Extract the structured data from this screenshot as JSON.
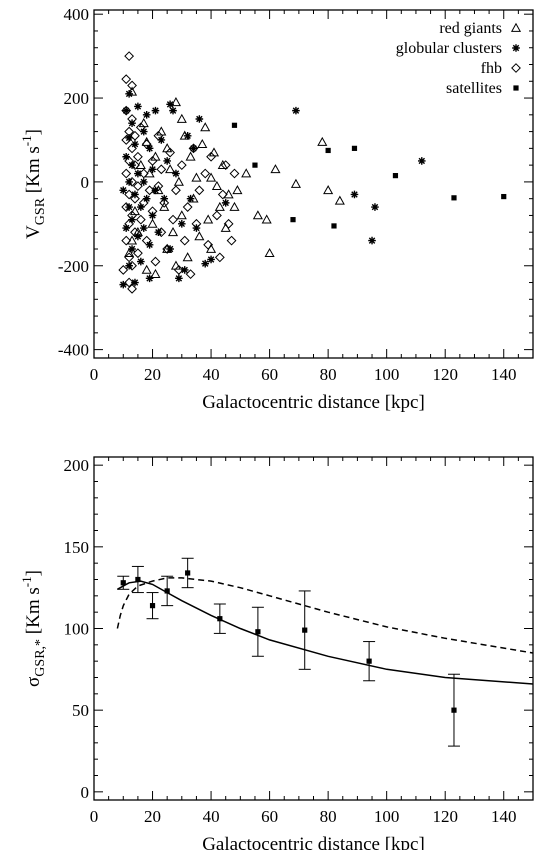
{
  "chart_data": [
    {
      "type": "scatter",
      "xlabel": "Galactocentric distance [kpc]",
      "ylabel_main": "V",
      "ylabel_sub": "GSR",
      "ylabel_unit_pre": " [Km s",
      "ylabel_unit_sup": "-1",
      "ylabel_unit_post": "]",
      "xlim": [
        0,
        150
      ],
      "ylim": [
        -420,
        410
      ],
      "xticks": [
        0,
        20,
        40,
        60,
        80,
        100,
        120,
        140
      ],
      "yticks": [
        -400,
        -200,
        0,
        200,
        400
      ],
      "grid": false,
      "legend_position": "top-right",
      "series": [
        {
          "name": "red giants",
          "marker": "triangle",
          "points": [
            [
              12,
              -170
            ],
            [
              13,
              215
            ],
            [
              13,
              -140
            ],
            [
              14,
              -70
            ],
            [
              15,
              -120
            ],
            [
              16,
              40
            ],
            [
              17,
              140
            ],
            [
              18,
              -210
            ],
            [
              18,
              95
            ],
            [
              19,
              20
            ],
            [
              20,
              -100
            ],
            [
              21,
              60
            ],
            [
              21,
              -220
            ],
            [
              22,
              -20
            ],
            [
              23,
              120
            ],
            [
              24,
              -60
            ],
            [
              25,
              80
            ],
            [
              25,
              -160
            ],
            [
              26,
              30
            ],
            [
              27,
              -120
            ],
            [
              28,
              190
            ],
            [
              28,
              -200
            ],
            [
              29,
              0
            ],
            [
              30,
              150
            ],
            [
              30,
              -80
            ],
            [
              31,
              110
            ],
            [
              32,
              -180
            ],
            [
              33,
              60
            ],
            [
              34,
              -40
            ],
            [
              35,
              10
            ],
            [
              36,
              -130
            ],
            [
              37,
              90
            ],
            [
              38,
              130
            ],
            [
              39,
              -90
            ],
            [
              40,
              10
            ],
            [
              40,
              -160
            ],
            [
              41,
              70
            ],
            [
              42,
              -10
            ],
            [
              43,
              -60
            ],
            [
              44,
              40
            ],
            [
              45,
              -110
            ],
            [
              46,
              -30
            ],
            [
              48,
              -60
            ],
            [
              49,
              -20
            ],
            [
              52,
              20
            ],
            [
              56,
              -80
            ],
            [
              59,
              -90
            ],
            [
              60,
              -170
            ],
            [
              62,
              30
            ],
            [
              69,
              -5
            ],
            [
              78,
              95
            ],
            [
              80,
              -20
            ],
            [
              84,
              -45
            ]
          ]
        },
        {
          "name": "globular clusters",
          "marker": "asterisk",
          "points": [
            [
              10,
              -245
            ],
            [
              10,
              -20
            ],
            [
              11,
              60
            ],
            [
              11,
              -110
            ],
            [
              11,
              170
            ],
            [
              12,
              -60
            ],
            [
              12,
              0
            ],
            [
              12,
              105
            ],
            [
              12,
              -200
            ],
            [
              12,
              210
            ],
            [
              13,
              -90
            ],
            [
              13,
              40
            ],
            [
              13,
              -160
            ],
            [
              13,
              140
            ],
            [
              14,
              -240
            ],
            [
              14,
              -30
            ],
            [
              14,
              90
            ],
            [
              15,
              -130
            ],
            [
              15,
              20
            ],
            [
              15,
              180
            ],
            [
              16,
              -60
            ],
            [
              16,
              -190
            ],
            [
              17,
              120
            ],
            [
              17,
              -110
            ],
            [
              17,
              0
            ],
            [
              18,
              160
            ],
            [
              18,
              -40
            ],
            [
              19,
              80
            ],
            [
              19,
              -150
            ],
            [
              19,
              -230
            ],
            [
              20,
              -80
            ],
            [
              20,
              30
            ],
            [
              21,
              170
            ],
            [
              21,
              -20
            ],
            [
              22,
              -120
            ],
            [
              23,
              100
            ],
            [
              24,
              -40
            ],
            [
              25,
              50
            ],
            [
              26,
              -160
            ],
            [
              26,
              185
            ],
            [
              27,
              170
            ],
            [
              28,
              20
            ],
            [
              29,
              -230
            ],
            [
              30,
              -100
            ],
            [
              31,
              -210
            ],
            [
              32,
              110
            ],
            [
              33,
              -40
            ],
            [
              34,
              80
            ],
            [
              35,
              -110
            ],
            [
              36,
              150
            ],
            [
              38,
              -195
            ],
            [
              40,
              -185
            ],
            [
              45,
              -50
            ],
            [
              69,
              170
            ],
            [
              89,
              -30
            ],
            [
              96,
              -60
            ],
            [
              112,
              50
            ],
            [
              95,
              -140
            ]
          ]
        },
        {
          "name": "fhb",
          "marker": "diamond",
          "points": [
            [
              10,
              -210
            ],
            [
              11,
              -140
            ],
            [
              11,
              -60
            ],
            [
              11,
              20
            ],
            [
              11,
              100
            ],
            [
              11,
              170
            ],
            [
              11,
              245
            ],
            [
              12,
              -240
            ],
            [
              12,
              -180
            ],
            [
              12,
              -100
            ],
            [
              12,
              -30
            ],
            [
              12,
              50
            ],
            [
              12,
              120
            ],
            [
              12,
              300
            ],
            [
              13,
              -255
            ],
            [
              13,
              -200
            ],
            [
              13,
              -80
            ],
            [
              13,
              0
            ],
            [
              13,
              80
            ],
            [
              13,
              150
            ],
            [
              13,
              230
            ],
            [
              14,
              -120
            ],
            [
              14,
              -40
            ],
            [
              14,
              40
            ],
            [
              14,
              110
            ],
            [
              15,
              -170
            ],
            [
              15,
              -10
            ],
            [
              15,
              60
            ],
            [
              16,
              -90
            ],
            [
              16,
              130
            ],
            [
              17,
              -50
            ],
            [
              17,
              20
            ],
            [
              18,
              -140
            ],
            [
              18,
              90
            ],
            [
              19,
              -20
            ],
            [
              20,
              50
            ],
            [
              20,
              -70
            ],
            [
              21,
              -190
            ],
            [
              22,
              110
            ],
            [
              22,
              -10
            ],
            [
              23,
              -120
            ],
            [
              23,
              30
            ],
            [
              24,
              -50
            ],
            [
              25,
              -160
            ],
            [
              26,
              70
            ],
            [
              27,
              -90
            ],
            [
              28,
              -20
            ],
            [
              29,
              -210
            ],
            [
              30,
              40
            ],
            [
              31,
              -140
            ],
            [
              32,
              -60
            ],
            [
              33,
              -220
            ],
            [
              34,
              80
            ],
            [
              35,
              -100
            ],
            [
              36,
              -20
            ],
            [
              38,
              20
            ],
            [
              39,
              -150
            ],
            [
              40,
              60
            ],
            [
              42,
              -80
            ],
            [
              43,
              -180
            ],
            [
              44,
              -30
            ],
            [
              45,
              40
            ],
            [
              46,
              -100
            ],
            [
              47,
              -140
            ],
            [
              48,
              20
            ]
          ]
        },
        {
          "name": "satellites",
          "marker": "square",
          "points": [
            [
              48,
              135
            ],
            [
              55,
              40
            ],
            [
              68,
              -90
            ],
            [
              80,
              75
            ],
            [
              82,
              -105
            ],
            [
              89,
              80
            ],
            [
              103,
              15
            ],
            [
              123,
              -38
            ],
            [
              140,
              -35
            ]
          ]
        }
      ]
    },
    {
      "type": "line",
      "xlabel": "Galactocentric distance [kpc]",
      "ylabel_main": "σ",
      "ylabel_sub": "GSR,*",
      "ylabel_unit_pre": " [Km s",
      "ylabel_unit_sup": "-1",
      "ylabel_unit_post": "]",
      "xlim": [
        0,
        150
      ],
      "ylim": [
        -5,
        205
      ],
      "xticks": [
        0,
        20,
        40,
        60,
        80,
        100,
        120,
        140
      ],
      "yticks": [
        0,
        50,
        100,
        150,
        200
      ],
      "grid": false,
      "measurements": {
        "x": [
          10,
          15,
          20,
          25,
          32,
          43,
          56,
          72,
          94,
          123
        ],
        "y": [
          128,
          130,
          114,
          123,
          134,
          106,
          98,
          99,
          80,
          50
        ],
        "yerr": [
          4,
          8,
          8,
          9,
          9,
          9,
          15,
          24,
          12,
          22
        ]
      },
      "solid_curve": {
        "x": [
          8,
          12,
          16,
          20,
          25,
          30,
          40,
          50,
          60,
          80,
          100,
          120,
          150
        ],
        "y": [
          124,
          128,
          129,
          127,
          122,
          117,
          108,
          100,
          93,
          83,
          75,
          70,
          66
        ]
      },
      "dashed_curve": {
        "x": [
          8,
          9,
          10,
          12,
          15,
          20,
          25,
          30,
          35,
          40,
          50,
          60,
          80,
          100,
          120,
          150
        ],
        "y": [
          100,
          108,
          114,
          121,
          126,
          129,
          131,
          131,
          130,
          129,
          125,
          120,
          110,
          101,
          94,
          85
        ]
      }
    }
  ]
}
